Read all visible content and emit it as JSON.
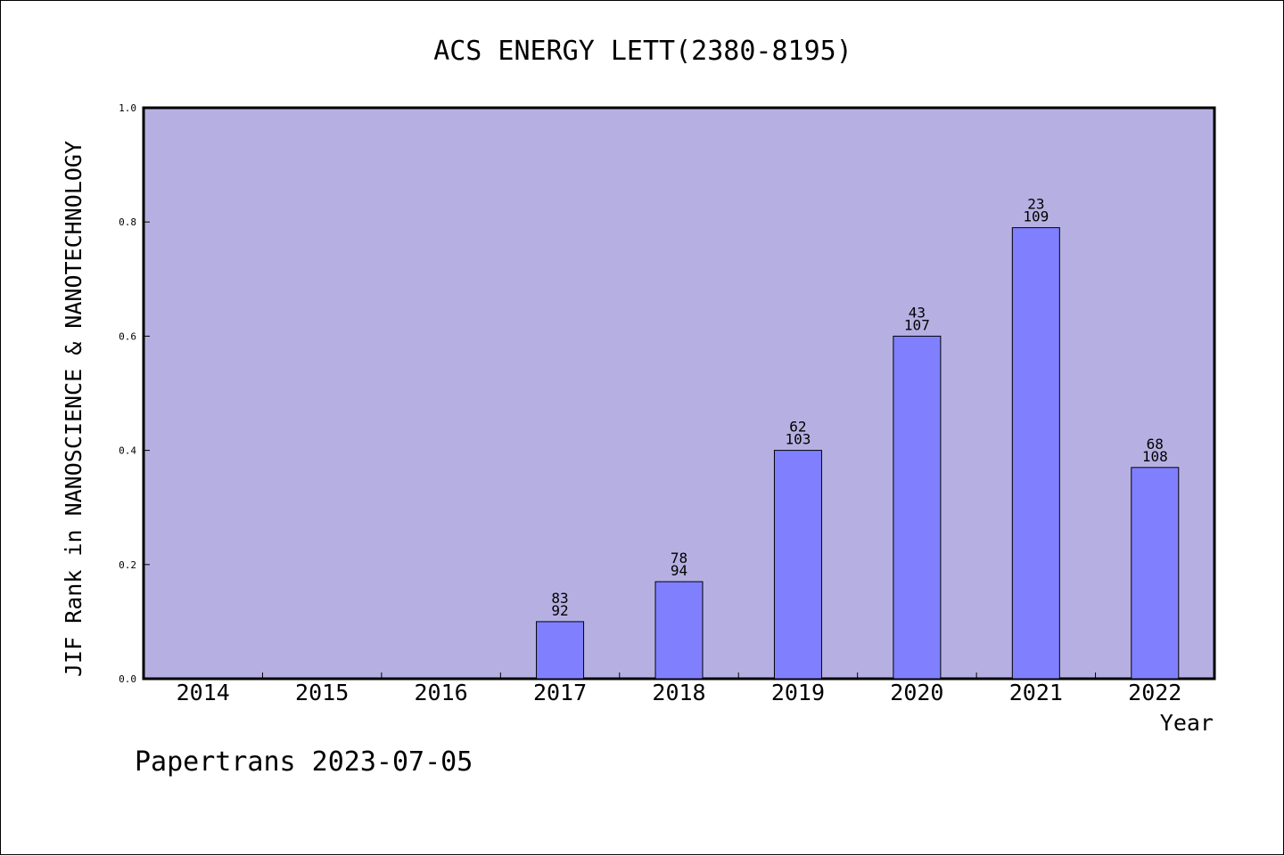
{
  "chart_data": {
    "type": "bar",
    "title": "ACS ENERGY LETT(2380-8195)",
    "xlabel": "Year",
    "ylabel": "JIF Rank in NANOSCIENCE & NANOTECHNOLOGY",
    "footer": "Papertrans 2023-07-05",
    "ylim": [
      0,
      1.0
    ],
    "y_ticks": [
      "0.0",
      "0.2",
      "0.4",
      "0.6",
      "0.8",
      "1.0"
    ],
    "y_tick_values": [
      0,
      0.2,
      0.4,
      0.6,
      0.8,
      1.0
    ],
    "categories": [
      "2014",
      "2015",
      "2016",
      "2017",
      "2018",
      "2019",
      "2020",
      "2021",
      "2022"
    ],
    "values": [
      null,
      null,
      null,
      0.1,
      0.17,
      0.4,
      0.6,
      0.79,
      0.37
    ],
    "labels_top": [
      null,
      null,
      null,
      "83",
      "78",
      "62",
      "43",
      "23",
      "68"
    ],
    "labels_bottom": [
      null,
      null,
      null,
      "92",
      "94",
      "103",
      "107",
      "109",
      "108"
    ],
    "grid": false,
    "colors": {
      "plot_background": "#b6b0e2",
      "bar_fill": "#8080ff",
      "bar_stroke": "#000000"
    }
  }
}
